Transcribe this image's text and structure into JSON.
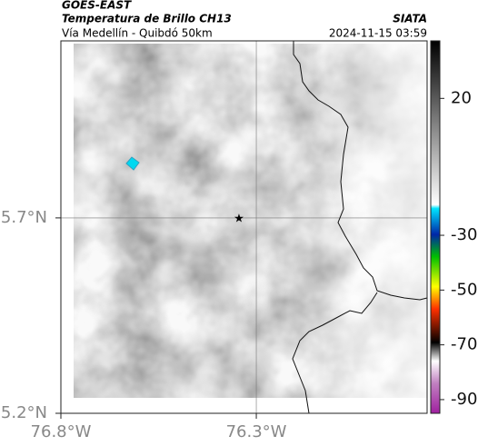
{
  "chart_data": {
    "type": "map",
    "title": "GOES-EAST",
    "subtitle": "Temperatura de Brillo CH13",
    "region": "Vía Medellín - Quibdó 50km",
    "source": "SIATA",
    "timestamp": "2024-11-15 03:59",
    "xlim": [
      -76.8,
      -75.863
    ],
    "ylim": [
      5.2,
      6.153
    ],
    "xticks": [
      {
        "value": -76.8,
        "label": "76.8°W"
      },
      {
        "value": -76.3,
        "label": "76.3°W"
      }
    ],
    "yticks": [
      {
        "value": 5.7,
        "label": "5.7°N"
      },
      {
        "value": 5.2,
        "label": "5.2°N"
      }
    ],
    "grid": true,
    "colorbar": {
      "clim": [
        -95,
        41
      ],
      "ticks": [
        20,
        -30,
        -50,
        -70,
        -90
      ]
    }
  }
}
